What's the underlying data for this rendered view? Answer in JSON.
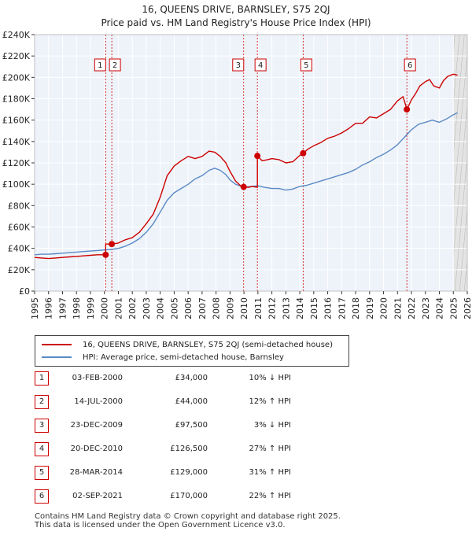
{
  "title_line1": "16, QUEENS DRIVE, BARNSLEY, S75 2QJ",
  "title_line2": "Price paid vs. HM Land Registry's House Price Index (HPI)",
  "chart_data": {
    "type": "line",
    "title": "16, QUEENS DRIVE, BARNSLEY, S75 2QJ — Price paid vs. HM Land Registry's House Price Index (HPI)",
    "xlim": [
      1995,
      2026
    ],
    "ylim": [
      0,
      240000
    ],
    "x_ticks": [
      1995,
      1996,
      1997,
      1998,
      1999,
      2000,
      2001,
      2002,
      2003,
      2004,
      2005,
      2006,
      2007,
      2008,
      2009,
      2010,
      2011,
      2012,
      2013,
      2014,
      2015,
      2016,
      2017,
      2018,
      2019,
      2020,
      2021,
      2022,
      2023,
      2024,
      2025,
      2026
    ],
    "x_tick_labels": [
      "1995",
      "1996",
      "1997",
      "1998",
      "1999",
      "2000",
      "2001",
      "2002",
      "2003",
      "2004",
      "2005",
      "2006",
      "2007",
      "2008",
      "2009",
      "2010",
      "2011",
      "2012",
      "2013",
      "2014",
      "2015",
      "2016",
      "2017",
      "2018",
      "2019",
      "2020",
      "2021",
      "2022",
      "2023",
      "2024",
      "2025",
      "2026"
    ],
    "y_ticks": [
      0,
      20000,
      40000,
      60000,
      80000,
      100000,
      120000,
      140000,
      160000,
      180000,
      200000,
      220000,
      240000
    ],
    "y_tick_labels": [
      "£0",
      "£20K",
      "£40K",
      "£60K",
      "£80K",
      "£100K",
      "£120K",
      "£140K",
      "£160K",
      "£180K",
      "£200K",
      "£220K",
      "£240K"
    ],
    "grid": true,
    "series": [
      {
        "name": "16, QUEENS DRIVE, BARNSLEY, S75 2QJ (semi-detached house)",
        "color": "#cc0000",
        "x": [
          1995.0,
          1995.5,
          1996.0,
          1996.5,
          1997.0,
          1997.5,
          1998.0,
          1998.5,
          1999.0,
          1999.5,
          2000.09,
          2000.09,
          2000.3,
          2000.53,
          2000.53,
          2001.0,
          2001.5,
          2002.0,
          2002.5,
          2003.0,
          2003.5,
          2004.0,
          2004.5,
          2005.0,
          2005.5,
          2006.0,
          2006.5,
          2007.0,
          2007.5,
          2007.9,
          2008.3,
          2008.7,
          2009.0,
          2009.4,
          2009.8,
          2009.98,
          2009.98,
          2010.3,
          2010.6,
          2010.96,
          2010.96,
          2011.3,
          2011.7,
          2012.0,
          2012.5,
          2013.0,
          2013.5,
          2014.0,
          2014.24,
          2014.24,
          2014.6,
          2015.0,
          2015.5,
          2016.0,
          2016.5,
          2017.0,
          2017.5,
          2018.0,
          2018.5,
          2019.0,
          2019.5,
          2020.0,
          2020.5,
          2021.0,
          2021.4,
          2021.67,
          2021.67,
          2022.0,
          2022.3,
          2022.6,
          2023.0,
          2023.3,
          2023.6,
          2024.0,
          2024.3,
          2024.6,
          2025.0,
          2025.3
        ],
        "y": [
          31500,
          31000,
          30500,
          31000,
          31500,
          32000,
          32500,
          33000,
          33500,
          34000,
          34000,
          44000,
          44000,
          44000,
          44000,
          45000,
          48000,
          50000,
          55000,
          63000,
          72000,
          88000,
          108000,
          117000,
          122000,
          126000,
          124000,
          126000,
          131000,
          130000,
          126000,
          120000,
          112000,
          103000,
          98000,
          97500,
          97500,
          97000,
          98000,
          97000,
          126500,
          122000,
          123000,
          124000,
          123000,
          120000,
          121000,
          127000,
          129000,
          129000,
          133000,
          136000,
          139000,
          143000,
          145000,
          148000,
          152000,
          157000,
          157000,
          163000,
          162000,
          166000,
          170000,
          178000,
          182000,
          170000,
          170000,
          179000,
          185000,
          192000,
          196000,
          198000,
          192000,
          190000,
          197000,
          201000,
          203000,
          202000
        ]
      },
      {
        "name": "HPI: Average price, semi-detached house, Barnsley",
        "color": "#5b8ac5",
        "x": [
          1995.0,
          1995.5,
          1996.0,
          1996.5,
          1997.0,
          1997.5,
          1998.0,
          1998.5,
          1999.0,
          1999.5,
          2000.0,
          2000.5,
          2001.0,
          2001.5,
          2002.0,
          2002.5,
          2003.0,
          2003.5,
          2004.0,
          2004.5,
          2005.0,
          2005.5,
          2006.0,
          2006.5,
          2007.0,
          2007.5,
          2007.9,
          2008.3,
          2008.7,
          2009.0,
          2009.4,
          2009.8,
          2010.0,
          2010.5,
          2011.0,
          2011.5,
          2012.0,
          2012.5,
          2013.0,
          2013.5,
          2014.0,
          2014.5,
          2015.0,
          2015.5,
          2016.0,
          2016.5,
          2017.0,
          2017.5,
          2018.0,
          2018.5,
          2019.0,
          2019.5,
          2020.0,
          2020.5,
          2021.0,
          2021.5,
          2022.0,
          2022.5,
          2023.0,
          2023.5,
          2024.0,
          2024.5,
          2025.0,
          2025.3
        ],
        "y": [
          34000,
          34500,
          34500,
          35000,
          35500,
          36000,
          36500,
          37000,
          37500,
          38000,
          38500,
          39000,
          40000,
          42000,
          45000,
          49000,
          55000,
          63000,
          74000,
          85000,
          92000,
          96000,
          100000,
          105000,
          108000,
          113000,
          115000,
          113000,
          109000,
          104000,
          100000,
          98000,
          97000,
          98000,
          98500,
          97000,
          96000,
          96000,
          94500,
          95500,
          98000,
          99000,
          101000,
          103000,
          105000,
          107000,
          109000,
          111000,
          114000,
          118000,
          121000,
          125000,
          128000,
          132000,
          137000,
          144000,
          151000,
          156000,
          158000,
          160000,
          158000,
          161000,
          165000,
          167000
        ]
      }
    ],
    "sale_markers": [
      {
        "label": "1",
        "x": 2000.09,
        "y": 34000
      },
      {
        "label": "2",
        "x": 2000.53,
        "y": 44000
      },
      {
        "label": "3",
        "x": 2009.98,
        "y": 97500
      },
      {
        "label": "4",
        "x": 2010.96,
        "y": 126500
      },
      {
        "label": "5",
        "x": 2014.24,
        "y": 129000
      },
      {
        "label": "6",
        "x": 2021.67,
        "y": 170000
      }
    ],
    "forecast_start": 2025.0,
    "legend": "bottom"
  },
  "legend": {
    "series1": "16, QUEENS DRIVE, BARNSLEY, S75 2QJ (semi-detached house)",
    "series2": "HPI: Average price, semi-detached house, Barnsley"
  },
  "sales": [
    {
      "num": "1",
      "date": "03-FEB-2000",
      "price": "£34,000",
      "hpi": "10% ↓ HPI"
    },
    {
      "num": "2",
      "date": "14-JUL-2000",
      "price": "£44,000",
      "hpi": "12% ↑ HPI"
    },
    {
      "num": "3",
      "date": "23-DEC-2009",
      "price": "£97,500",
      "hpi": "3% ↓ HPI"
    },
    {
      "num": "4",
      "date": "20-DEC-2010",
      "price": "£126,500",
      "hpi": "27% ↑ HPI"
    },
    {
      "num": "5",
      "date": "28-MAR-2014",
      "price": "£129,000",
      "hpi": "31% ↑ HPI"
    },
    {
      "num": "6",
      "date": "02-SEP-2021",
      "price": "£170,000",
      "hpi": "22% ↑ HPI"
    }
  ],
  "footer_line1": "Contains HM Land Registry data © Crown copyright and database right 2025.",
  "footer_line2": "This data is licensed under the Open Government Licence v3.0."
}
